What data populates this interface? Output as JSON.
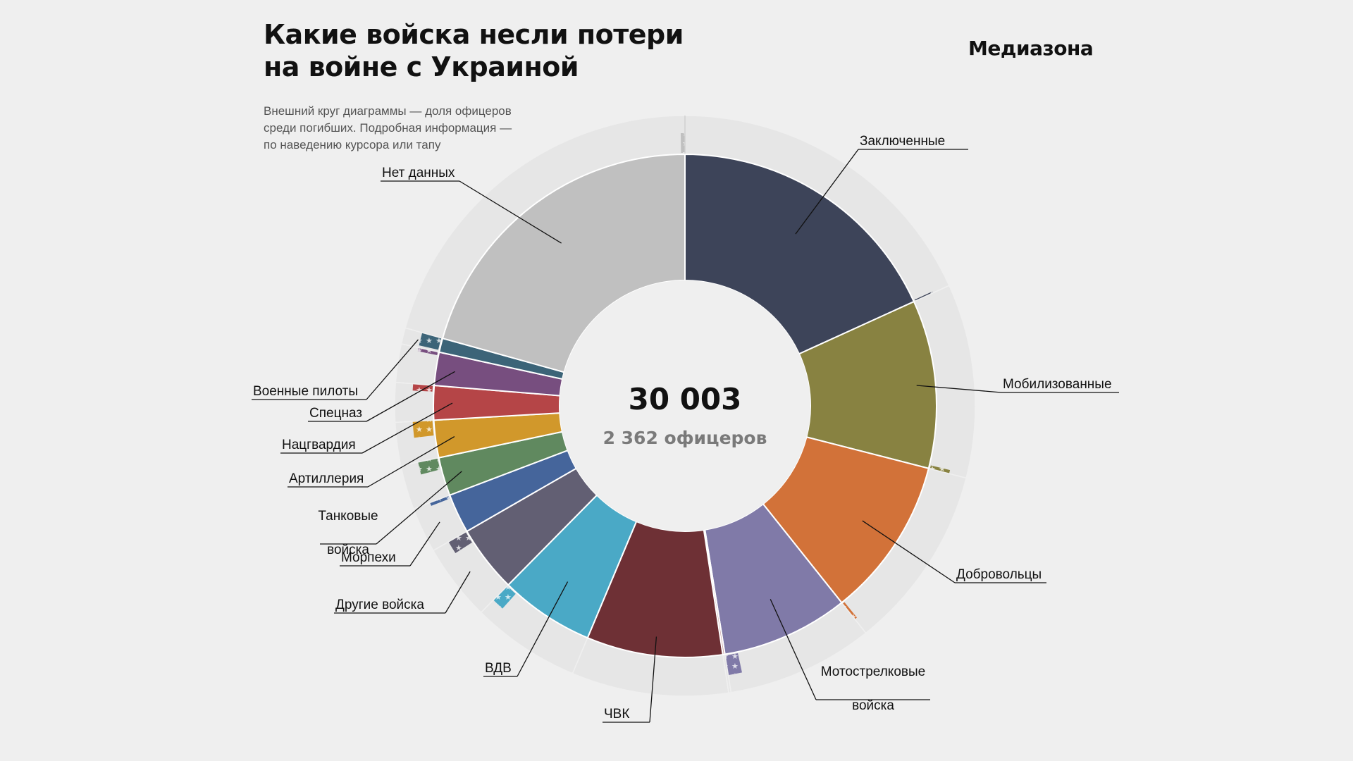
{
  "header": {
    "title_line1": "Какие войска несли потери",
    "title_line2": "на войне с Украиной",
    "brand": "Медиазона",
    "note_line1": "Внешний круг диаграммы — доля офицеров",
    "note_line2": "среди погибших. Подробная информация —",
    "note_line3": "по наведению курсора или тапу"
  },
  "center": {
    "total": "30 003",
    "officers": "2 362 офицеров"
  },
  "colors": {
    "background": "#efefef",
    "outer_ring": "#e6e6e6",
    "inner_disc": "#efefef",
    "separator": "#ffffff",
    "leader_line": "#111111"
  },
  "chart_data": {
    "type": "pie",
    "variant": "donut with outer ring showing officer share per category",
    "total": 30003,
    "officers_total": 2362,
    "direction": "clockwise from 12 o'clock",
    "categories": [
      {
        "label": "Заключенные",
        "value": 5460,
        "officer_share": 0.005,
        "color": "#3d4459"
      },
      {
        "label": "Мобилизованные",
        "value": 3240,
        "officer_share": 0.02,
        "color": "#888241"
      },
      {
        "label": "Добровольцы",
        "value": 3090,
        "officer_share": 0.015,
        "color": "#d27239"
      },
      {
        "label": "Мотострелковые войска",
        "value": 2450,
        "officer_share": 0.1,
        "color": "#807aa8"
      },
      {
        "label": "",
        "value": 40,
        "officer_share": 0,
        "color": "#c8a0a0"
      },
      {
        "label": "ЧВК",
        "value": 2620,
        "officer_share": 0,
        "color": "#6e3035"
      },
      {
        "label": "ВДВ",
        "value": 1820,
        "officer_share": 0.12,
        "color": "#4aa9c6"
      },
      {
        "label": "Другие войска",
        "value": 1290,
        "officer_share": 0.18,
        "color": "#625f73"
      },
      {
        "label": "Морпехи",
        "value": 760,
        "officer_share": 0.08,
        "color": "#45659b"
      },
      {
        "label": "Танковые войска",
        "value": 740,
        "officer_share": 0.3,
        "color": "#60895f"
      },
      {
        "label": "Артиллерия",
        "value": 720,
        "officer_share": 0.4,
        "color": "#d1982b"
      },
      {
        "label": "Нацгвардия",
        "value": 660,
        "officer_share": 0.18,
        "color": "#b54547"
      },
      {
        "label": "Спецназ",
        "value": 640,
        "officer_share": 0.1,
        "color": "#774e7f"
      },
      {
        "label": "Военные пилоты",
        "value": 270,
        "officer_share": 0.85,
        "color": "#3c6478"
      },
      {
        "label": "Нет данных",
        "value": 6203,
        "officer_share": 0.012,
        "color": "#c0c0c0"
      }
    ]
  }
}
